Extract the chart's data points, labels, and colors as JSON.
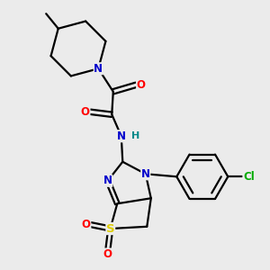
{
  "background_color": "#ebebeb",
  "atom_colors": {
    "C": "#000000",
    "N": "#0000cc",
    "O": "#ff0000",
    "S": "#ddcc00",
    "Cl": "#00aa00",
    "H": "#008888"
  },
  "figsize": [
    3.0,
    3.0
  ],
  "dpi": 100,
  "xlim": [
    0,
    10
  ],
  "ylim": [
    0,
    10
  ]
}
